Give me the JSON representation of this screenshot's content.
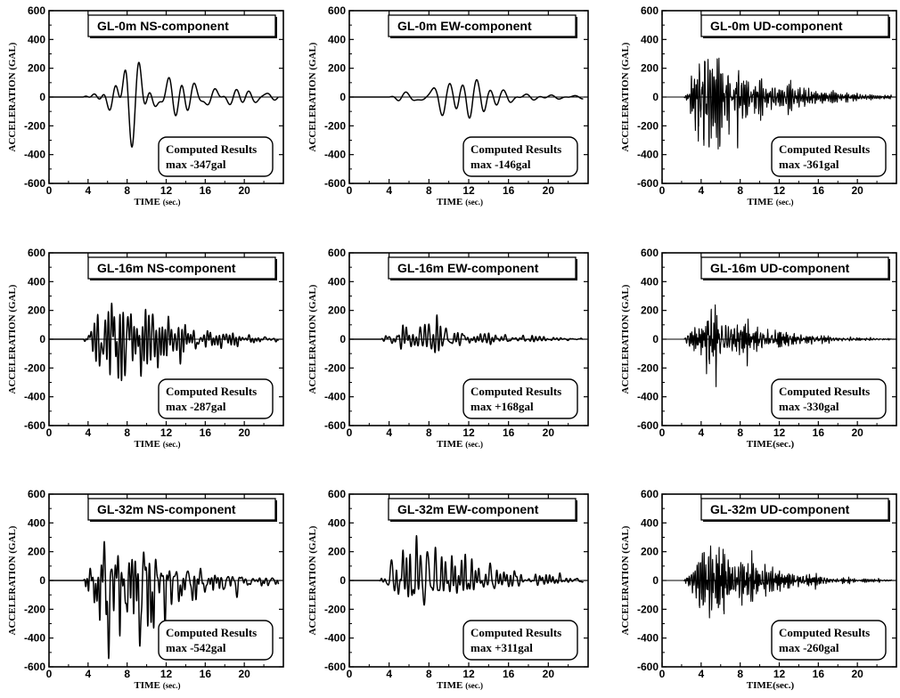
{
  "chart_data": [
    {
      "type": "line",
      "title": "GL-0m  NS-component",
      "xlabel": "TIME",
      "xlabel_unit": "(sec.)",
      "ylabel": "ACCELERATION (GAL)",
      "xlim": [
        0,
        24
      ],
      "ylim": [
        -600,
        600
      ],
      "xticks": [
        0,
        4,
        8,
        12,
        16,
        20
      ],
      "yticks": [
        600,
        400,
        200,
        0,
        -200,
        -400,
        -600
      ],
      "result_label": "Computed Results",
      "max_label": "max -347gal",
      "max_value": -347,
      "positive_peak": 310,
      "signal_start": 3.5,
      "character": "low"
    },
    {
      "type": "line",
      "title": "GL-0m  EW-component",
      "xlabel": "TIME",
      "xlabel_unit": "(sec.)",
      "ylabel": "ACCELERATION (GAL)",
      "xlim": [
        0,
        24
      ],
      "ylim": [
        -600,
        600
      ],
      "xticks": [
        0,
        4,
        8,
        12,
        16,
        20
      ],
      "yticks": [
        600,
        400,
        200,
        0,
        -200,
        -400,
        -600
      ],
      "result_label": "Computed Results",
      "max_label": "max -146gal",
      "max_value": -146,
      "positive_peak": 120,
      "signal_start": 4.0,
      "character": "low"
    },
    {
      "type": "line",
      "title": "GL-0m  UD-component",
      "xlabel": "TIME",
      "xlabel_unit": "(sec.)",
      "ylabel": "ACCELERATION (GAL)",
      "xlim": [
        0,
        24
      ],
      "ylim": [
        -600,
        600
      ],
      "xticks": [
        0,
        4,
        8,
        12,
        16,
        20
      ],
      "yticks": [
        600,
        400,
        200,
        0,
        -200,
        -400,
        -600
      ],
      "result_label": "Computed Results",
      "max_label": "max -361gal",
      "max_value": -361,
      "positive_peak": 270,
      "signal_start": 2.2,
      "character": "high"
    },
    {
      "type": "line",
      "title": "GL-16m  NS-component",
      "xlabel": "TIME",
      "xlabel_unit": "(sec.)",
      "ylabel": "ACCELERATION (GAL)",
      "xlim": [
        0,
        24
      ],
      "ylim": [
        -600,
        600
      ],
      "xticks": [
        0,
        4,
        8,
        12,
        16,
        20
      ],
      "yticks": [
        600,
        400,
        200,
        0,
        -200,
        -400,
        -600
      ],
      "result_label": "Computed Results",
      "max_label": "max -287gal",
      "max_value": -287,
      "positive_peak": 250,
      "signal_start": 3.5,
      "character": "mid"
    },
    {
      "type": "line",
      "title": "GL-16m  EW-component",
      "xlabel": "TIME",
      "xlabel_unit": "(sec.)",
      "ylabel": "ACCELERATION (GAL)",
      "xlim": [
        0,
        24
      ],
      "ylim": [
        -600,
        600
      ],
      "xticks": [
        0,
        4,
        8,
        12,
        16,
        20
      ],
      "yticks": [
        600,
        400,
        200,
        0,
        -200,
        -400,
        -600
      ],
      "result_label": "Computed Results",
      "max_label": "max +168gal",
      "max_value": 168,
      "positive_peak": 168,
      "signal_start": 3.2,
      "character": "mid"
    },
    {
      "type": "line",
      "title": "GL-16m  UD-component",
      "xlabel": "TIME(sec.)",
      "xlabel_unit": "",
      "ylabel": "ACCELERATION (GAL)",
      "xlim": [
        0,
        24
      ],
      "ylim": [
        -600,
        600
      ],
      "xticks": [
        0,
        4,
        8,
        12,
        16,
        20
      ],
      "yticks": [
        600,
        400,
        200,
        0,
        -200,
        -400,
        -600
      ],
      "result_label": "Computed Results",
      "max_label": "max -330gal",
      "max_value": -330,
      "positive_peak": 260,
      "signal_start": 2.2,
      "character": "high"
    },
    {
      "type": "line",
      "title": "GL-32m  NS-component",
      "xlabel": "TIME",
      "xlabel_unit": "(sec.)",
      "ylabel": "ACCELERATION (GAL)",
      "xlim": [
        0,
        24
      ],
      "ylim": [
        -600,
        600
      ],
      "xticks": [
        0,
        4,
        8,
        12,
        16,
        20
      ],
      "yticks": [
        600,
        400,
        200,
        0,
        -200,
        -400,
        -600
      ],
      "result_label": "Computed Results",
      "max_label": "max -542gal",
      "max_value": -542,
      "positive_peak": 270,
      "signal_start": 3.5,
      "character": "mid"
    },
    {
      "type": "line",
      "title": "GL-32m  EW-component",
      "xlabel": "TIME",
      "xlabel_unit": "(sec.)",
      "ylabel": "ACCELERATION (GAL)",
      "xlim": [
        0,
        24
      ],
      "ylim": [
        -600,
        600
      ],
      "xticks": [
        0,
        4,
        8,
        12,
        16,
        20
      ],
      "yticks": [
        600,
        400,
        200,
        0,
        -200,
        -400,
        -600
      ],
      "result_label": "Computed Results",
      "max_label": "max +311gal",
      "max_value": 311,
      "positive_peak": 311,
      "signal_start": 3.0,
      "character": "mid"
    },
    {
      "type": "line",
      "title": "GL-32m  UD-component",
      "xlabel": "TIME(sec.)",
      "xlabel_unit": "",
      "ylabel": "ACCELERATION (GAL)",
      "xlim": [
        0,
        24
      ],
      "ylim": [
        -600,
        600
      ],
      "xticks": [
        0,
        4,
        8,
        12,
        16,
        20
      ],
      "yticks": [
        600,
        400,
        200,
        0,
        -200,
        -400,
        -600
      ],
      "result_label": "Computed Results",
      "max_label": "max -260gal",
      "max_value": -260,
      "positive_peak": 240,
      "signal_start": 2.2,
      "character": "high"
    }
  ]
}
